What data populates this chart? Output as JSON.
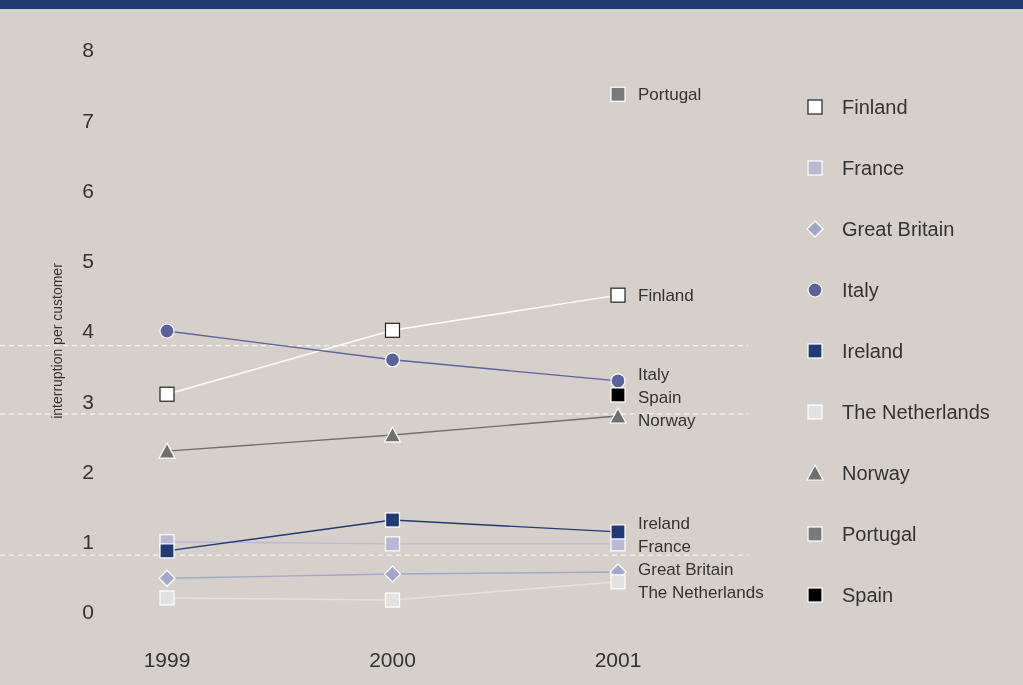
{
  "chart_data": {
    "type": "line",
    "ylabel": "interruption per customer",
    "categories": [
      "1999",
      "2000",
      "2001"
    ],
    "ylim": [
      0,
      8
    ],
    "yticks": [
      0,
      1,
      2,
      3,
      4,
      5,
      6,
      7,
      8
    ],
    "grid": false,
    "legend": "right",
    "ref_lines": [
      {
        "axis": "y",
        "value": 3.79,
        "color": "#ffffff",
        "line_style": "dashed"
      },
      {
        "axis": "y",
        "value": 2.82,
        "color": "#ffffff",
        "line_style": "dashed"
      },
      {
        "axis": "y",
        "value": 0.81,
        "color": "#ffffff",
        "line_style": "dashed"
      }
    ],
    "series": [
      {
        "name": "Finland",
        "color": "#ffffff",
        "marker": "square",
        "values": [
          3.1,
          4.01,
          4.51
        ]
      },
      {
        "name": "France",
        "color": "#b9b9d6",
        "marker": "square",
        "values": [
          1.0,
          0.97,
          0.97
        ]
      },
      {
        "name": "Great Britain",
        "color": "#a3a7cb",
        "marker": "diamond",
        "values": [
          0.48,
          0.54,
          0.57
        ]
      },
      {
        "name": "Italy",
        "color": "#5a62a0",
        "marker": "circle",
        "values": [
          4.0,
          3.59,
          3.29
        ]
      },
      {
        "name": "Ireland",
        "color": "#1e3a78",
        "marker": "square",
        "values": [
          0.87,
          1.31,
          1.14
        ]
      },
      {
        "name": "The Netherlands",
        "color": "#e2e2e2",
        "marker": "square",
        "values": [
          0.2,
          0.17,
          0.43
        ]
      },
      {
        "name": "Norway",
        "color": "#6f6f6f",
        "marker": "triangle",
        "values": [
          2.29,
          2.52,
          2.79
        ]
      },
      {
        "name": "Portugal",
        "color": "#7a7a7a",
        "marker": "square",
        "values": [
          null,
          null,
          7.37
        ]
      },
      {
        "name": "Spain",
        "color": "#000000",
        "marker": "square",
        "values": [
          null,
          null,
          3.09
        ]
      }
    ]
  }
}
